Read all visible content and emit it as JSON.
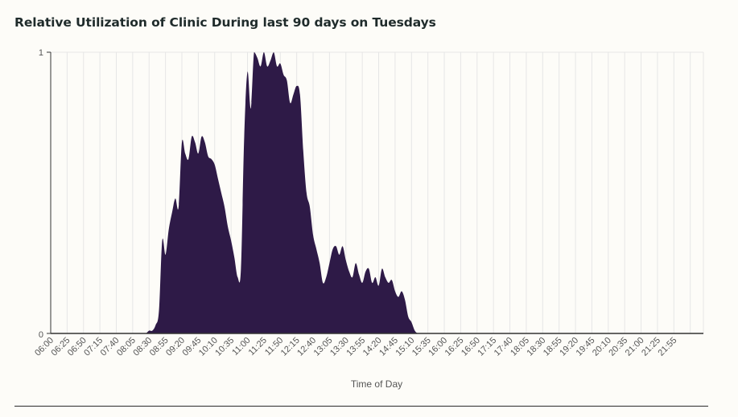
{
  "chart_data": {
    "type": "area",
    "title": "Relative Utilization of Clinic During last 90 days on Tuesdays",
    "xlabel": "Time of Day",
    "ylabel": "",
    "ylim": [
      0,
      1
    ],
    "yticks": [
      "0",
      "1"
    ],
    "grid": true,
    "colors": {
      "fill": "#2e1a47",
      "grid": "#e6e6e6",
      "axis": "#333333",
      "text": "#555555"
    },
    "x_interval_minutes": 5,
    "x_start": "06:00",
    "x_end": "21:55",
    "tick_labels": [
      "06:00",
      "06:25",
      "06:50",
      "07:15",
      "07:40",
      "08:05",
      "08:30",
      "08:55",
      "09:20",
      "09:45",
      "10:10",
      "10:35",
      "11:00",
      "11:25",
      "11:50",
      "12:15",
      "12:40",
      "13:05",
      "13:30",
      "13:55",
      "14:20",
      "14:45",
      "15:10",
      "15:35",
      "16:00",
      "16:25",
      "16:50",
      "17:15",
      "17:40",
      "18:05",
      "18:30",
      "18:55",
      "19:20",
      "19:45",
      "20:10",
      "20:35",
      "21:00",
      "21:25",
      "21:55"
    ],
    "series": [
      {
        "name": "Relative Utilization",
        "values": [
          0,
          0,
          0,
          0,
          0,
          0,
          0,
          0,
          0,
          0,
          0,
          0,
          0,
          0,
          0,
          0,
          0,
          0,
          0,
          0,
          0,
          0,
          0,
          0,
          0,
          0,
          0,
          0,
          0,
          0,
          0.01,
          0.01,
          0.03,
          0.08,
          0.33,
          0.28,
          0.37,
          0.43,
          0.48,
          0.45,
          0.68,
          0.64,
          0.62,
          0.7,
          0.68,
          0.64,
          0.7,
          0.68,
          0.63,
          0.62,
          0.6,
          0.55,
          0.5,
          0.45,
          0.38,
          0.33,
          0.27,
          0.2,
          0.23,
          0.7,
          0.93,
          0.8,
          1.0,
          0.98,
          0.95,
          1.0,
          0.95,
          0.97,
          1.0,
          0.95,
          0.96,
          0.92,
          0.9,
          0.82,
          0.85,
          0.88,
          0.85,
          0.65,
          0.5,
          0.45,
          0.35,
          0.3,
          0.25,
          0.18,
          0.2,
          0.25,
          0.3,
          0.31,
          0.28,
          0.31,
          0.26,
          0.22,
          0.2,
          0.25,
          0.21,
          0.18,
          0.22,
          0.23,
          0.18,
          0.2,
          0.17,
          0.23,
          0.2,
          0.18,
          0.19,
          0.15,
          0.13,
          0.15,
          0.12,
          0.06,
          0.04,
          0.01,
          0,
          0,
          0,
          0,
          0,
          0,
          0,
          0,
          0,
          0,
          0,
          0,
          0,
          0,
          0,
          0,
          0,
          0,
          0,
          0,
          0,
          0,
          0,
          0,
          0,
          0,
          0,
          0,
          0,
          0,
          0,
          0,
          0,
          0,
          0,
          0,
          0,
          0,
          0,
          0,
          0,
          0,
          0,
          0,
          0,
          0,
          0,
          0,
          0,
          0,
          0,
          0,
          0,
          0,
          0,
          0,
          0,
          0,
          0,
          0,
          0,
          0,
          0,
          0,
          0,
          0,
          0,
          0,
          0,
          0,
          0,
          0,
          0,
          0,
          0,
          0,
          0,
          0,
          0,
          0,
          0,
          0,
          0,
          0,
          0,
          0,
          0,
          0
        ]
      }
    ]
  }
}
